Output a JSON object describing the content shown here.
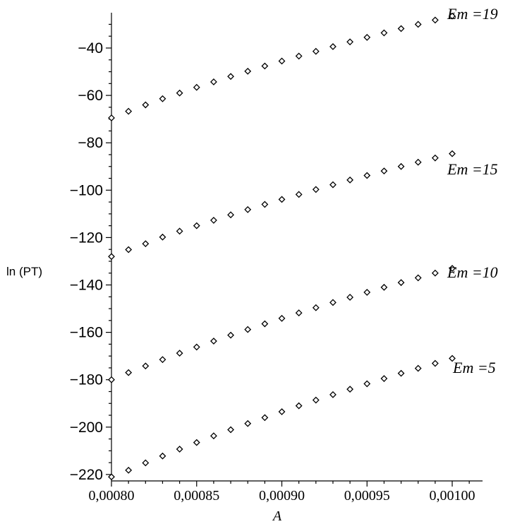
{
  "chart_data": {
    "type": "scatter",
    "xlabel": "A",
    "ylabel": "ln (PT)",
    "xlim": [
      0.0008,
      0.001
    ],
    "ylim": [
      -220,
      -25
    ],
    "x_ticks": [
      {
        "value": 0.0008,
        "label": "0,00080"
      },
      {
        "value": 0.00085,
        "label": "0,00085"
      },
      {
        "value": 0.0009,
        "label": "0,00090"
      },
      {
        "value": 0.00095,
        "label": "0,00095"
      },
      {
        "value": 0.001,
        "label": "0,00100"
      }
    ],
    "y_ticks": [
      {
        "value": -40,
        "label": "-40"
      },
      {
        "value": -60,
        "label": "-60"
      },
      {
        "value": -80,
        "label": "-80"
      },
      {
        "value": -100,
        "label": "-100"
      },
      {
        "value": -120,
        "label": "-120"
      },
      {
        "value": -140,
        "label": "-140"
      },
      {
        "value": -160,
        "label": "-160"
      },
      {
        "value": -180,
        "label": "-180"
      },
      {
        "value": -200,
        "label": "-200"
      },
      {
        "value": -220,
        "label": "-220"
      }
    ],
    "x": [
      0.0008,
      0.00081,
      0.00082,
      0.00083,
      0.00084,
      0.00085,
      0.00086,
      0.00087,
      0.00088,
      0.00089,
      0.0009,
      0.00091,
      0.00092,
      0.00093,
      0.00094,
      0.00095,
      0.00096,
      0.00097,
      0.00098,
      0.00099,
      0.001
    ],
    "series": [
      {
        "name": "Em =19",
        "values": [
          -69.5,
          -66.7,
          -64.0,
          -61.4,
          -59.0,
          -56.6,
          -54.3,
          -52.0,
          -49.8,
          -47.6,
          -45.5,
          -43.4,
          -41.4,
          -39.4,
          -37.4,
          -35.5,
          -33.6,
          -31.8,
          -30.0,
          -28.2,
          -26.5
        ]
      },
      {
        "name": "Em =15",
        "values": [
          -128.0,
          -125.1,
          -122.6,
          -119.8,
          -117.3,
          -115.0,
          -112.7,
          -110.4,
          -108.2,
          -106.0,
          -103.9,
          -101.8,
          -99.7,
          -97.7,
          -95.7,
          -93.8,
          -91.9,
          -90.0,
          -88.2,
          -86.4,
          -84.6
        ]
      },
      {
        "name": "Em =10",
        "values": [
          -180.0,
          -177.0,
          -174.2,
          -171.5,
          -168.8,
          -166.2,
          -163.7,
          -161.2,
          -158.8,
          -156.4,
          -154.1,
          -151.8,
          -149.6,
          -147.4,
          -145.2,
          -143.1,
          -141.0,
          -139.0,
          -137.0,
          -135.0,
          -133.0
        ]
      },
      {
        "name": "Em =5",
        "values": [
          -221.0,
          -218.2,
          -215.1,
          -212.2,
          -209.3,
          -206.5,
          -203.7,
          -201.1,
          -198.5,
          -196.0,
          -193.5,
          -191.0,
          -188.6,
          -186.3,
          -184.0,
          -181.7,
          -179.5,
          -177.3,
          -175.2,
          -173.1,
          -171.0
        ]
      }
    ],
    "grid": false,
    "legend": "none"
  }
}
